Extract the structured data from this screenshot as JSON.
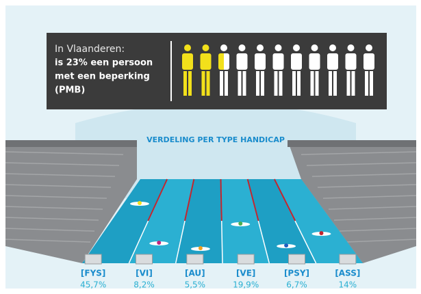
{
  "header": {
    "line1": "In Vlaanderen:",
    "line2": "is 23% een persoon",
    "line3": "met een beperking",
    "line4": "(PMB)"
  },
  "title": "VERDELING PER TYPE HANDICAP",
  "lanes": [
    {
      "label": "[FYS]",
      "value": "45,7%"
    },
    {
      "label": "[VI]",
      "value": "8,2%"
    },
    {
      "label": "[AU]",
      "value": "5,5%"
    },
    {
      "label": "[VE]",
      "value": "19,9%"
    },
    {
      "label": "[PSY]",
      "value": "6,7%"
    },
    {
      "label": "[ASS]",
      "value": "14%"
    }
  ]
}
